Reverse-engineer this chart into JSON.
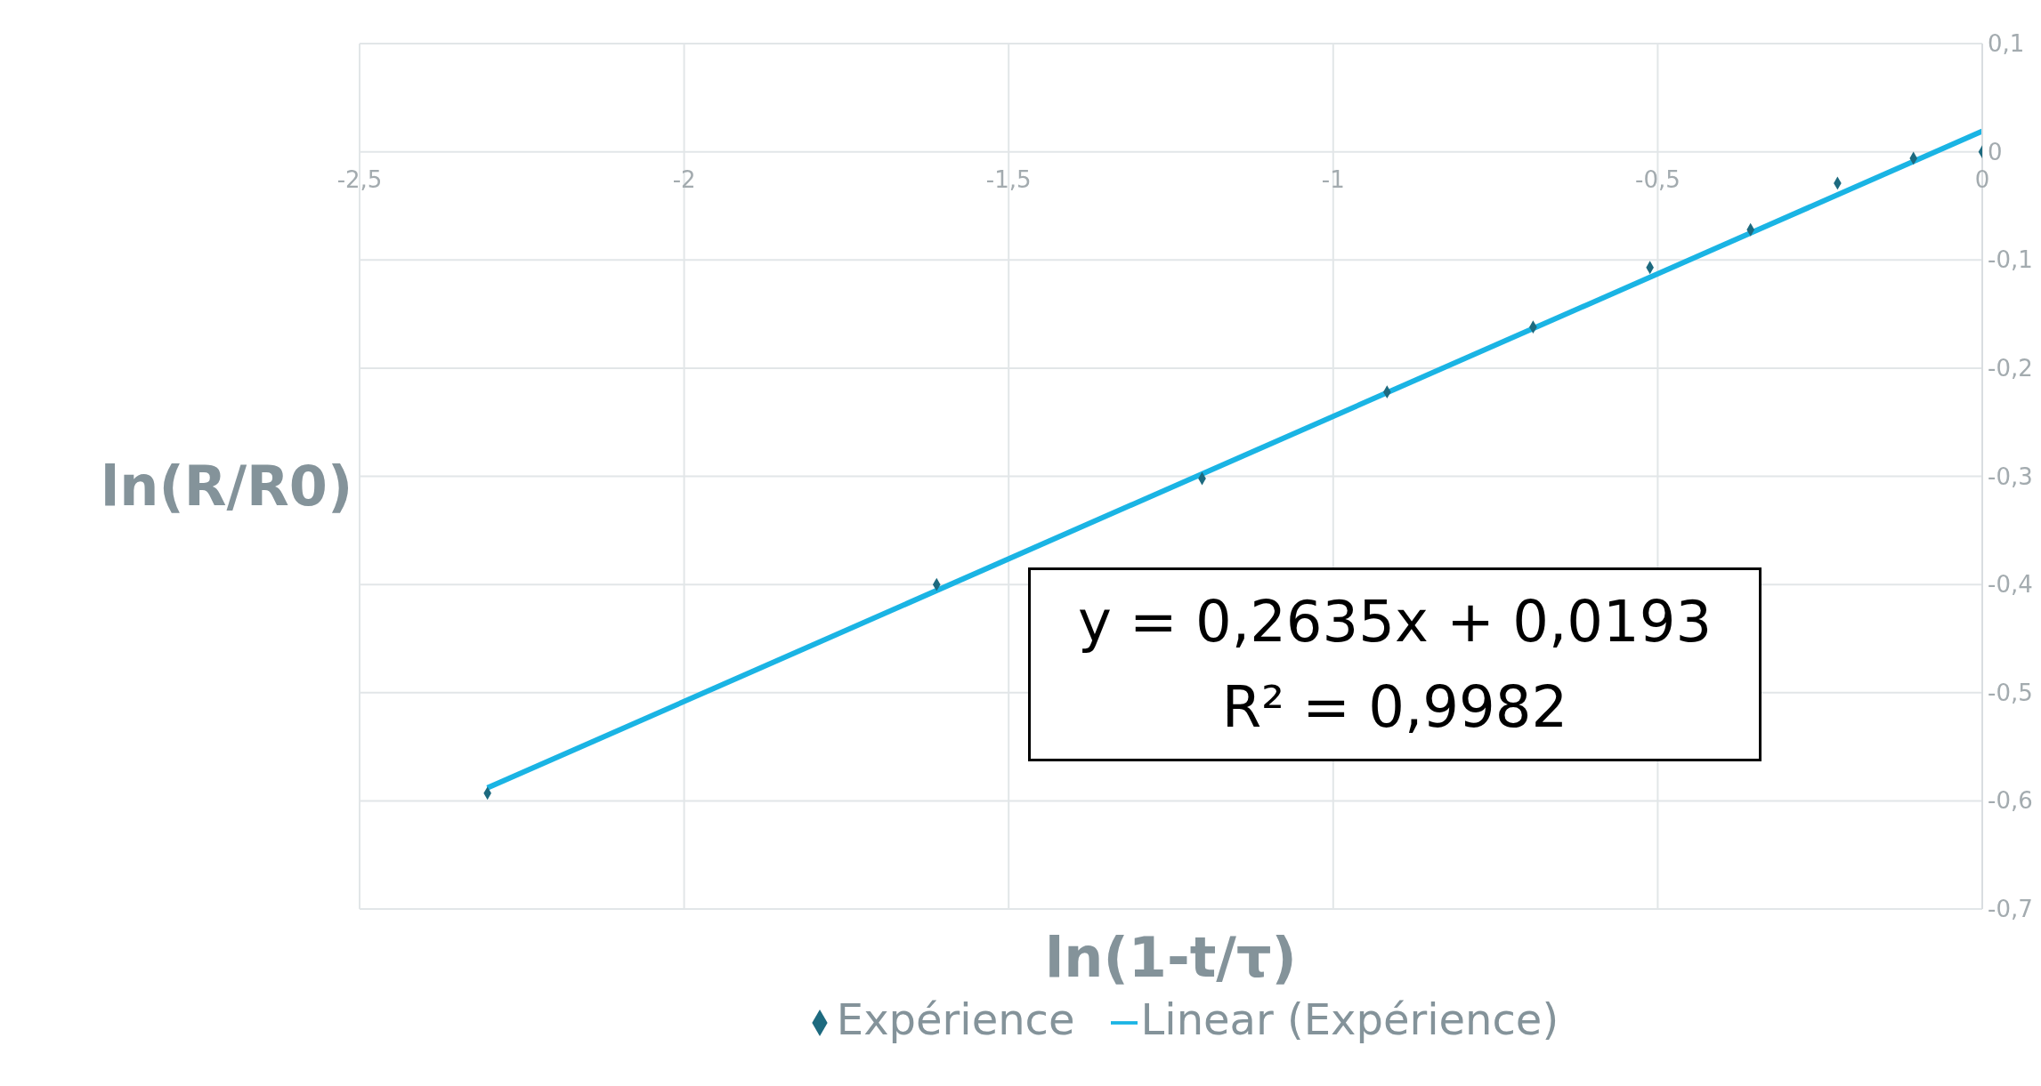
{
  "chart_data": {
    "type": "scatter",
    "xlabel": "ln(1-t/τ)",
    "ylabel": "ln(R/R0)",
    "annotations": [
      "y = 0,2635x + 0,0193",
      "R² = 0,9982"
    ],
    "xlim": [
      -2.5,
      0
    ],
    "xticks": [
      {
        "value": -2.5,
        "label": "-2,5"
      },
      -2,
      {
        "value": -1.5,
        "label": "-1,5"
      },
      -1,
      {
        "value": -0.5,
        "label": "-0,5"
      },
      0
    ],
    "ylim": [
      -0.7,
      0.1
    ],
    "yticks": [
      {
        "value": -0.7,
        "label": "-0,7"
      },
      {
        "value": -0.6,
        "label": "-0,6"
      },
      {
        "value": -0.5,
        "label": "-0,5"
      },
      {
        "value": -0.4,
        "label": "-0,4"
      },
      {
        "value": -0.3,
        "label": "-0,3"
      },
      {
        "value": -0.2,
        "label": "-0,2"
      },
      {
        "value": -0.1,
        "label": "-0,1"
      },
      0,
      {
        "value": 0.1,
        "label": "0,1"
      }
    ],
    "grid": true,
    "legend": "bottom",
    "series": [
      {
        "name": "Expérience",
        "marker": "diamond",
        "color": "#1d6a7f",
        "x": [
          -2.303,
          -1.611,
          -1.202,
          -0.917,
          -0.692,
          -0.512,
          -0.357,
          -0.223,
          -0.106,
          0
        ],
        "values": [
          -0.593,
          -0.4,
          -0.302,
          -0.222,
          -0.162,
          -0.107,
          -0.072,
          -0.029,
          -0.006,
          0
        ]
      },
      {
        "name": "Linear (Expérience)",
        "type": "line",
        "marker": "none",
        "line_style": "solid",
        "color": "#1ab4e4",
        "x": [
          -2.303,
          0
        ],
        "values": [
          -0.588,
          0.019
        ]
      }
    ]
  }
}
